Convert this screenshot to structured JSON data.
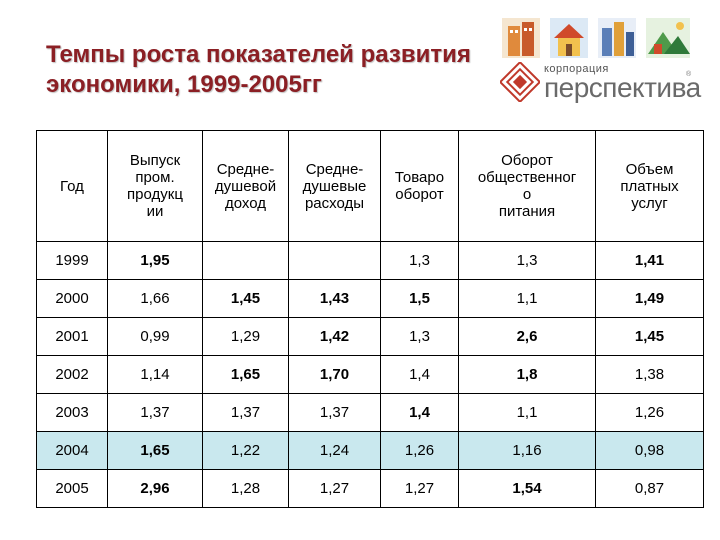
{
  "title": {
    "line1": "Темпы роста показателей развития",
    "line2": "экономики, 1999-2005гг"
  },
  "logo": {
    "small": "корпорация",
    "big": "перспектива",
    "reg": "®"
  },
  "icons": [
    "building-icon",
    "house-icon",
    "city-icon",
    "landscape-icon"
  ],
  "table": {
    "headers": [
      "Год",
      "Выпуск пром. продукции",
      "Средне-душевой доход",
      "Средне-душевые расходы",
      "Товарооборот",
      "Оборот общественного питания",
      "Объем платных услуг"
    ],
    "header_lines": [
      [
        "Год"
      ],
      [
        "Выпуск",
        "пром.",
        "продукц",
        "ии"
      ],
      [
        "Средне-",
        "душевой",
        "доход"
      ],
      [
        "Средне-",
        "душевые",
        "расходы"
      ],
      [
        "Товаро",
        "оборот"
      ],
      [
        "Оборот",
        "общественног",
        "о",
        "питания"
      ],
      [
        "Объем",
        "платных",
        "услуг"
      ]
    ],
    "rows": [
      {
        "year": "1999",
        "cells": [
          "1,95",
          "",
          "",
          "1,3",
          "1,3",
          "1,41"
        ],
        "bold": [
          true,
          false,
          false,
          false,
          false,
          true
        ],
        "highlight": false
      },
      {
        "year": "2000",
        "cells": [
          "1,66",
          "1,45",
          "1,43",
          "1,5",
          "1,1",
          "1,49"
        ],
        "bold": [
          false,
          true,
          true,
          true,
          false,
          true
        ],
        "highlight": false
      },
      {
        "year": "2001",
        "cells": [
          "0,99",
          "1,29",
          "1,42",
          "1,3",
          "2,6",
          "1,45"
        ],
        "bold": [
          false,
          false,
          true,
          false,
          true,
          true
        ],
        "highlight": false
      },
      {
        "year": "2002",
        "cells": [
          "1,14",
          "1,65",
          "1,70",
          "1,4",
          "1,8",
          "1,38"
        ],
        "bold": [
          false,
          true,
          true,
          false,
          true,
          false
        ],
        "highlight": false
      },
      {
        "year": "2003",
        "cells": [
          "1,37",
          "1,37",
          "1,37",
          "1,4",
          "1,1",
          "1,26"
        ],
        "bold": [
          false,
          false,
          false,
          true,
          false,
          false
        ],
        "highlight": false
      },
      {
        "year": "2004",
        "cells": [
          "1,65",
          "1,22",
          "1,24",
          "1,26",
          "1,16",
          "0,98"
        ],
        "bold": [
          true,
          false,
          false,
          false,
          false,
          false
        ],
        "highlight": true
      },
      {
        "year": "2005",
        "cells": [
          "2,96",
          "1,28",
          "1,27",
          "1,27",
          "1,54",
          "0,87"
        ],
        "bold": [
          true,
          false,
          false,
          false,
          true,
          false
        ],
        "highlight": false
      }
    ]
  },
  "colors": {
    "title": "#8b1f24",
    "logo_red": "#c0392b",
    "highlight_row": "#c9e8ee"
  }
}
